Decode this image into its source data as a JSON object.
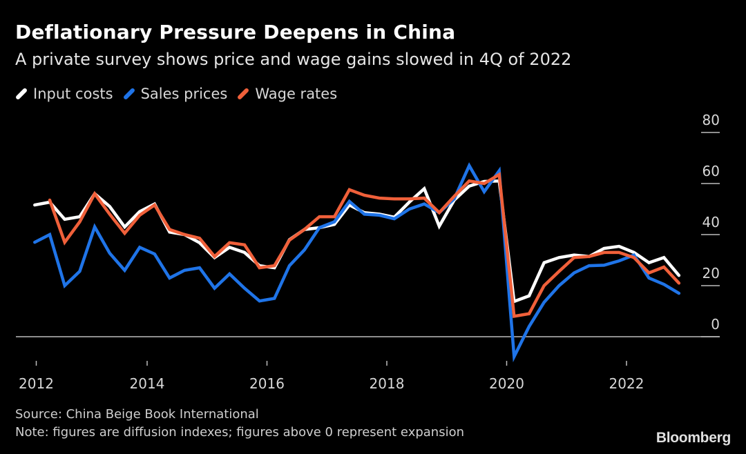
{
  "header": {
    "title": "Deflationary Pressure Deepens in China",
    "subtitle": "A private survey shows price and wage gains slowed in 4Q of 2022"
  },
  "footer": {
    "source": "Source: China Beige Book International",
    "note": "Note: figures are diffusion indexes; figures above 0 represent expansion",
    "brand": "Bloomberg"
  },
  "colors": {
    "background": "#000000",
    "input_costs": "#ffffff",
    "sales_prices": "#1f74e8",
    "wage_rates": "#f0603a",
    "axis": "#bdbdbd"
  },
  "chart_data": {
    "type": "line",
    "title": "Deflationary Pressure Deepens in China",
    "subtitle": "A private survey shows price and wage gains slowed in 4Q of 2022",
    "xlabel": "",
    "ylabel": "",
    "frequency": "quarterly",
    "x_start": "2012Q1",
    "x_end": "2022Q4",
    "x": [
      "2012Q1",
      "2012Q2",
      "2012Q3",
      "2012Q4",
      "2013Q1",
      "2013Q2",
      "2013Q3",
      "2013Q4",
      "2014Q1",
      "2014Q2",
      "2014Q3",
      "2014Q4",
      "2015Q1",
      "2015Q2",
      "2015Q3",
      "2015Q4",
      "2016Q1",
      "2016Q2",
      "2016Q3",
      "2016Q4",
      "2017Q1",
      "2017Q2",
      "2017Q3",
      "2017Q4",
      "2018Q1",
      "2018Q2",
      "2018Q3",
      "2018Q4",
      "2019Q1",
      "2019Q2",
      "2019Q3",
      "2019Q4",
      "2020Q1",
      "2020Q2",
      "2020Q3",
      "2020Q4",
      "2021Q1",
      "2021Q2",
      "2021Q3",
      "2021Q4",
      "2022Q1",
      "2022Q2",
      "2022Q3",
      "2022Q4"
    ],
    "xticks": [
      2012,
      2014,
      2016,
      2018,
      2020,
      2022
    ],
    "xtick_labels": [
      "2012",
      "2014",
      "2016",
      "2018",
      "2020",
      "2022"
    ],
    "xlim": [
      2012.0,
      2023.0
    ],
    "yticks": [
      0,
      20,
      40,
      60,
      80
    ],
    "ytick_labels": [
      "0",
      "20",
      "40",
      "60",
      "80"
    ],
    "ylim": [
      -12,
      85
    ],
    "y_axis_side": "right",
    "zero_line": true,
    "grid": false,
    "legend_position": "top-left",
    "series": [
      {
        "name": "Input costs",
        "color": "#ffffff",
        "values": [
          51.6,
          52.7,
          46,
          47,
          56,
          51,
          43,
          49,
          52,
          41,
          40,
          36.8,
          31,
          35,
          33,
          27.8,
          27,
          38,
          42,
          42.7,
          44,
          51.6,
          48.6,
          48,
          46.8,
          52.7,
          58,
          43.3,
          53.5,
          59,
          60.8,
          61,
          13.8,
          16,
          29,
          31,
          32,
          31.4,
          34.6,
          35.4,
          33,
          29,
          31,
          24
        ]
      },
      {
        "name": "Sales prices",
        "color": "#1f74e8",
        "values": [
          37,
          40,
          20,
          25.6,
          43,
          32.7,
          26,
          35,
          32.4,
          23,
          26,
          27,
          19,
          24.6,
          19,
          14,
          15,
          27.8,
          34,
          42.7,
          45,
          53,
          48,
          47.6,
          46.2,
          50,
          52,
          48.6,
          54,
          67,
          56.8,
          65,
          -7.8,
          4,
          13.5,
          20,
          25,
          27.8,
          28,
          29.7,
          32,
          23,
          20.5,
          17
        ]
      },
      {
        "name": "Wage rates",
        "color": "#f0603a",
        "values": [
          null,
          53.5,
          37,
          45,
          56,
          48,
          40.5,
          47.6,
          51.6,
          42,
          40,
          38.6,
          31.4,
          36.8,
          36,
          27,
          27.8,
          37.8,
          42,
          47,
          47,
          57.6,
          55.4,
          54.3,
          54,
          54,
          54.3,
          48.6,
          55,
          61,
          60,
          63.5,
          8,
          9,
          20,
          25.6,
          31,
          31.4,
          33,
          33,
          31,
          25,
          27.3,
          21
        ]
      }
    ]
  }
}
